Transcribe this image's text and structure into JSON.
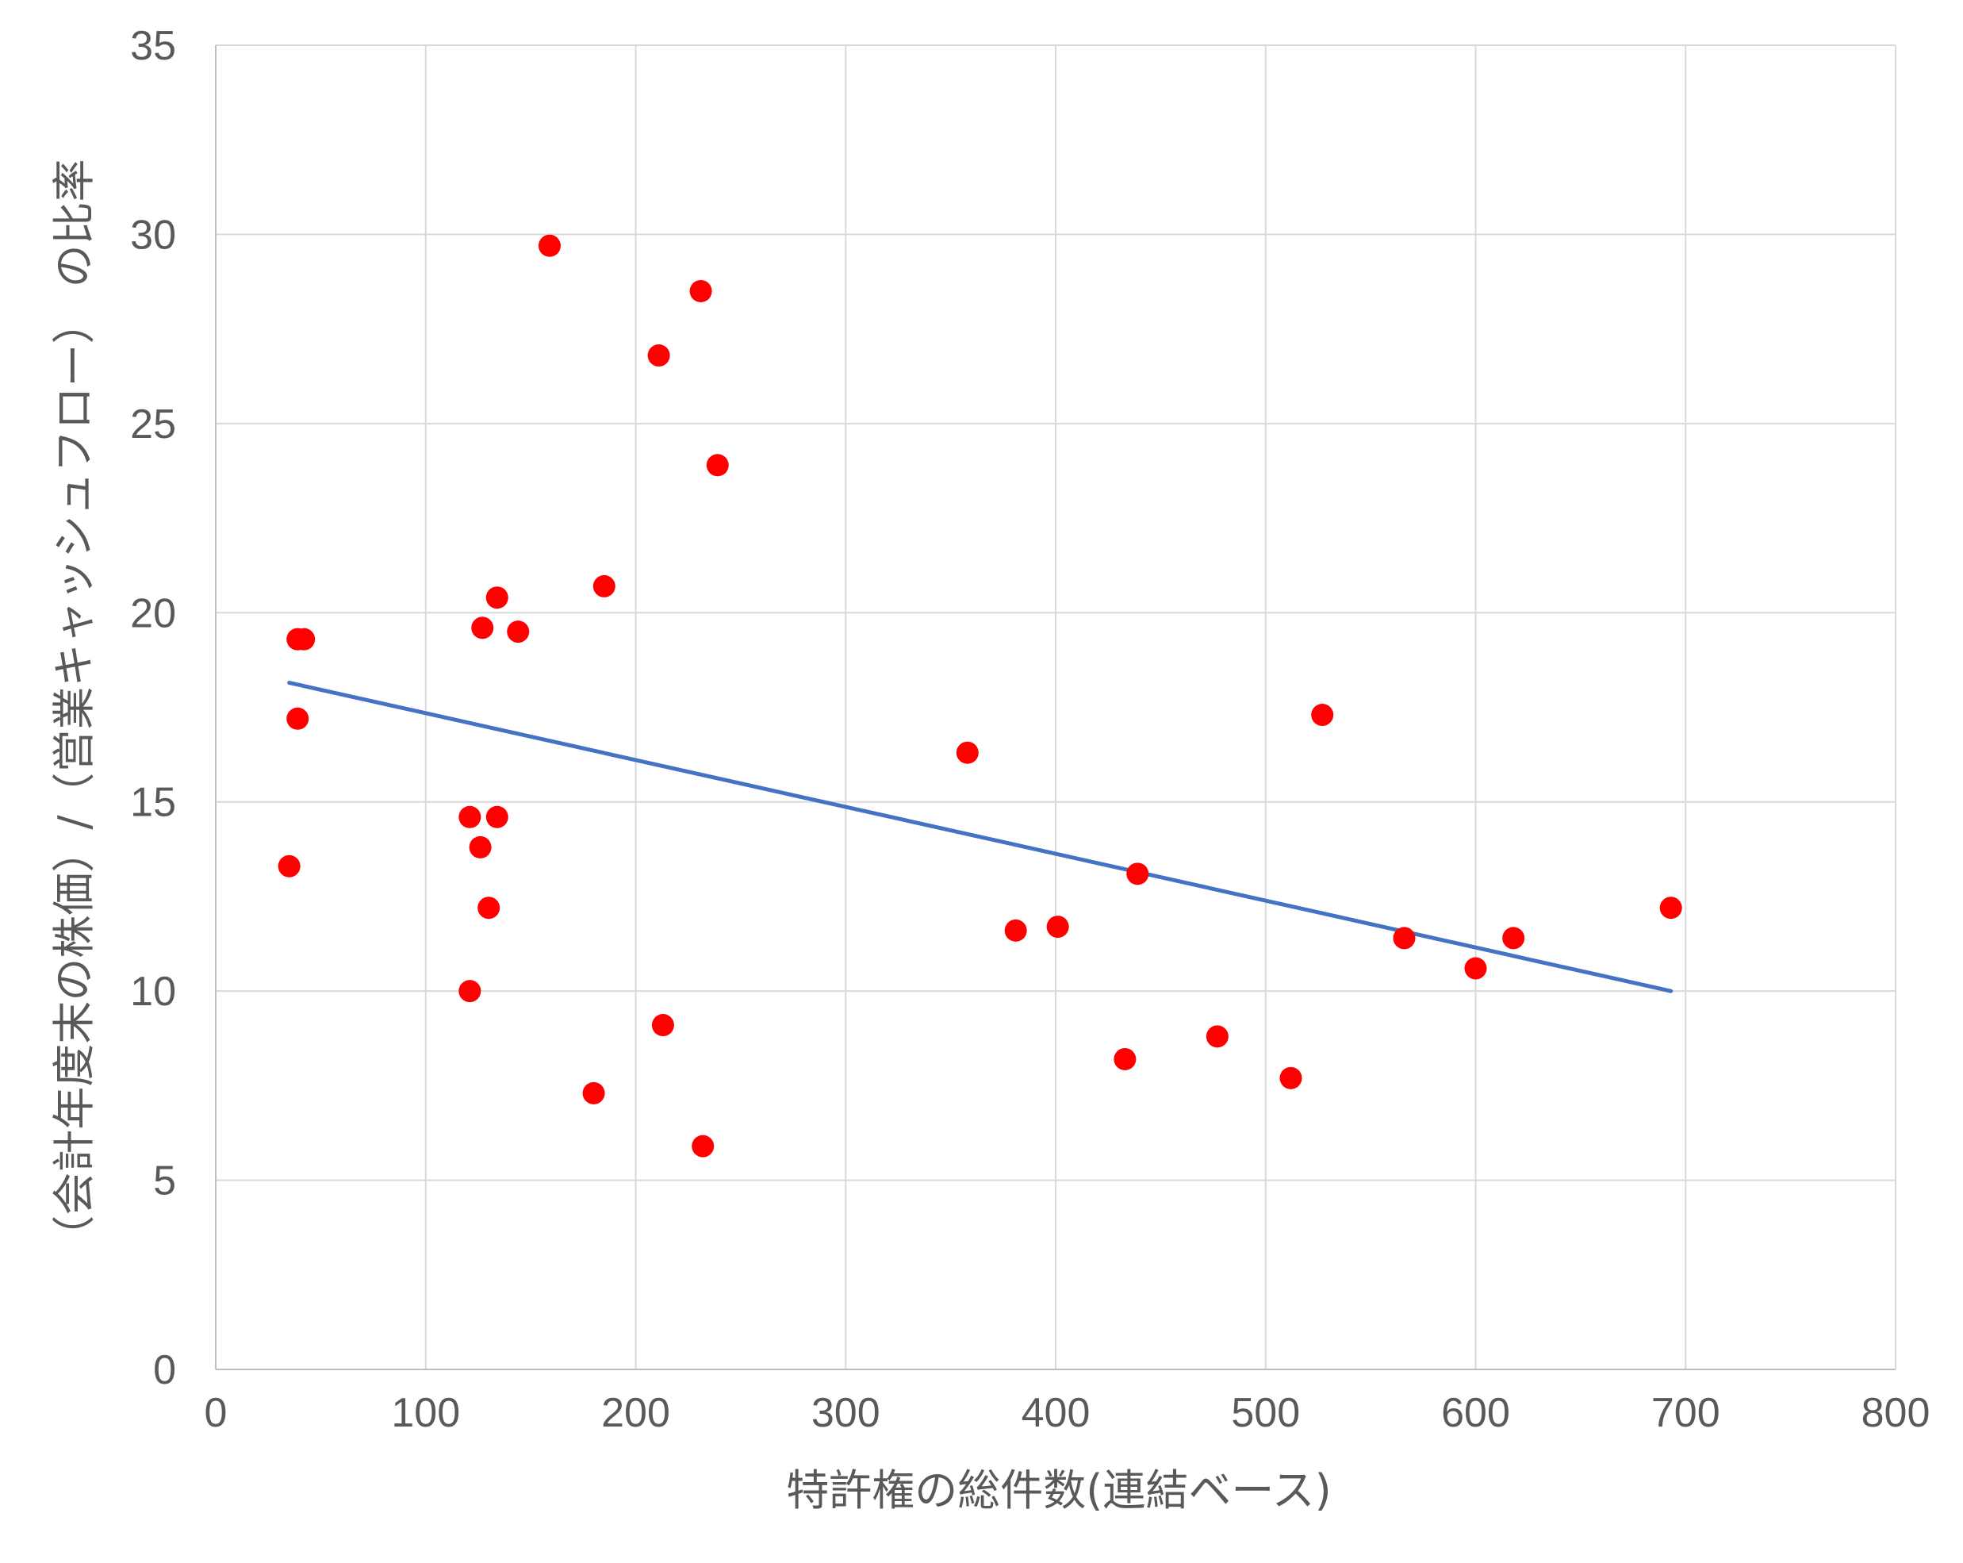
{
  "chart_data": {
    "type": "scatter",
    "title": "",
    "xlabel": "特許権の総件数(連結ベース)",
    "ylabel": "（会計年度末の株価）/（営業キャッシュフロー） の比率",
    "xlim": [
      0,
      800
    ],
    "ylim": [
      0,
      35
    ],
    "x_ticks": [
      "0",
      "100",
      "200",
      "300",
      "400",
      "500",
      "600",
      "700",
      "800"
    ],
    "y_ticks": [
      "0",
      "5",
      "10",
      "15",
      "20",
      "25",
      "30",
      "35"
    ],
    "grid": true,
    "legend": "none",
    "colors": {
      "points": "#ff0000",
      "trendline": "#4472c4",
      "grid": "#d9d9d9",
      "axis": "#bfbfbf"
    },
    "series": [
      {
        "name": "points",
        "x": [
          35,
          39,
          42,
          39,
          121,
          121,
          126,
          127,
          130,
          134,
          134,
          144,
          159,
          180,
          185,
          211,
          213,
          231,
          232,
          239,
          358,
          381,
          401,
          433,
          439,
          477,
          512,
          527,
          566,
          600,
          618,
          693
        ],
        "y": [
          13.3,
          19.3,
          19.3,
          17.2,
          14.6,
          10.0,
          13.8,
          19.6,
          12.2,
          20.4,
          14.6,
          19.5,
          29.7,
          7.3,
          20.7,
          26.8,
          9.1,
          28.5,
          5.9,
          23.9,
          16.3,
          11.6,
          11.7,
          8.2,
          13.1,
          8.8,
          7.7,
          17.3,
          11.4,
          10.6,
          11.4,
          12.2
        ]
      },
      {
        "name": "trendline",
        "type": "line",
        "x": [
          35,
          693
        ],
        "y": [
          18.15,
          10.0
        ]
      }
    ]
  }
}
